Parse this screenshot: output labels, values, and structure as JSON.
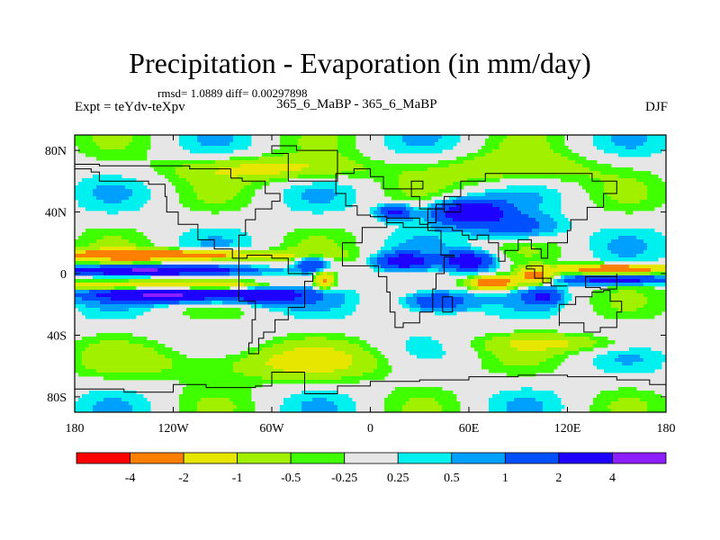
{
  "header": {
    "title": "Precipitation - Evaporation (in mm/day)",
    "stats": "rmsd= 1.0889 diff= 0.00297898",
    "experiment": "Expt = teYdv-teXpv",
    "runs": "365_6_MaBP - 365_6_MaBP",
    "season": "DJF"
  },
  "chart_data": {
    "type": "heatmap",
    "title": "Precipitation - Evaporation (in mm/day)",
    "variable": "Precipitation - Evaporation",
    "units": "mm/day",
    "season": "DJF",
    "x_range": [
      -180,
      180
    ],
    "y_range": [
      -90,
      90
    ],
    "x_ticks": [
      {
        "value": -180,
        "label": "180"
      },
      {
        "value": -120,
        "label": "120W"
      },
      {
        "value": -60,
        "label": "60W"
      },
      {
        "value": 0,
        "label": "0"
      },
      {
        "value": 60,
        "label": "60E"
      },
      {
        "value": 120,
        "label": "120E"
      },
      {
        "value": 180,
        "label": "180"
      }
    ],
    "y_ticks": [
      {
        "value": 80,
        "label": "80N"
      },
      {
        "value": 40,
        "label": "40N"
      },
      {
        "value": 0,
        "label": "0"
      },
      {
        "value": -40,
        "label": "40S"
      },
      {
        "value": -80,
        "label": "80S"
      }
    ],
    "colorbar": {
      "boundaries": [
        "-4",
        "-2",
        "-1",
        "-0.5",
        "-0.25",
        "0.25",
        "0.5",
        "1",
        "2",
        "4"
      ],
      "colors": [
        "#ff0000",
        "#ff8000",
        "#e6e600",
        "#a0f000",
        "#40ff00",
        "#e6e6e6",
        "#00f0f0",
        "#00a0ff",
        "#0050ff",
        "#1e00ff",
        "#8c1eff"
      ]
    },
    "features": [
      {
        "lon": -150,
        "lat": 12,
        "level": 0,
        "note": "strong negative band"
      },
      {
        "lon": -150,
        "lat": 2,
        "level": 10,
        "note": "strong positive band"
      },
      {
        "lon": -150,
        "lat": -8,
        "level": 0,
        "note": "strong negative band"
      },
      {
        "lon": -120,
        "lat": -12,
        "level": 10,
        "note": "south Pacific maximum"
      },
      {
        "lon": 20,
        "lat": 8,
        "level": 9,
        "note": "Atlantic/Africa positive"
      },
      {
        "lon": 60,
        "lat": 40,
        "level": 9,
        "note": "Asian positive"
      },
      {
        "lon": 75,
        "lat": -5,
        "level": 0,
        "note": "Indian Ocean negative"
      },
      {
        "lon": 150,
        "lat": 3,
        "level": 0,
        "note": "west Pacific negative"
      }
    ]
  }
}
